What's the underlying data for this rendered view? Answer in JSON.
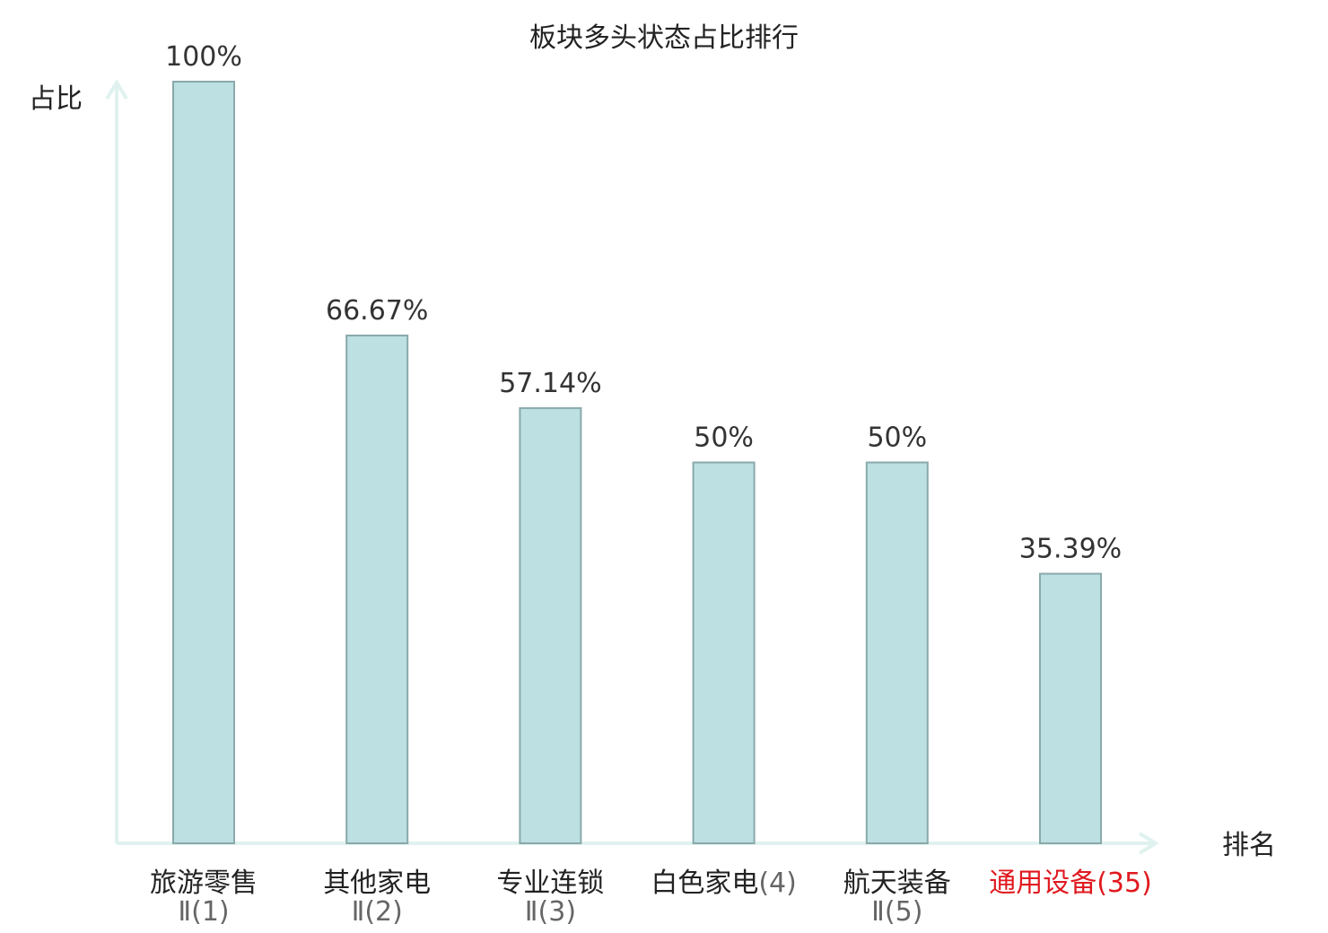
{
  "chart_data": {
    "type": "bar",
    "title": "板块多头状态占比排行",
    "ylabel": "占比",
    "xlabel": "排名",
    "ylim": [
      0,
      100
    ],
    "grid": false,
    "categories": [
      {
        "name": "旅游零售",
        "suffix": "Ⅱ(1)",
        "value": 100,
        "label": "100%",
        "highlight": false
      },
      {
        "name": "其他家电",
        "suffix": "Ⅱ(2)",
        "value": 66.67,
        "label": "66.67%",
        "highlight": false
      },
      {
        "name": "专业连锁",
        "suffix": "Ⅱ(3)",
        "value": 57.14,
        "label": "57.14%",
        "highlight": false
      },
      {
        "name": "白色家电",
        "suffix": "(4)",
        "value": 50,
        "label": "50%",
        "highlight": false
      },
      {
        "name": "航天装备",
        "suffix": "Ⅱ(5)",
        "value": 50,
        "label": "50%",
        "highlight": false
      },
      {
        "name": "通用设备",
        "suffix": "(35)",
        "value": 35.39,
        "label": "35.39%",
        "highlight": true
      }
    ],
    "colors": {
      "bar_fill": "#bde0e2",
      "bar_stroke": "#8aa9ab",
      "axis": "#e0f2ef",
      "highlight": "#e0191f"
    }
  }
}
